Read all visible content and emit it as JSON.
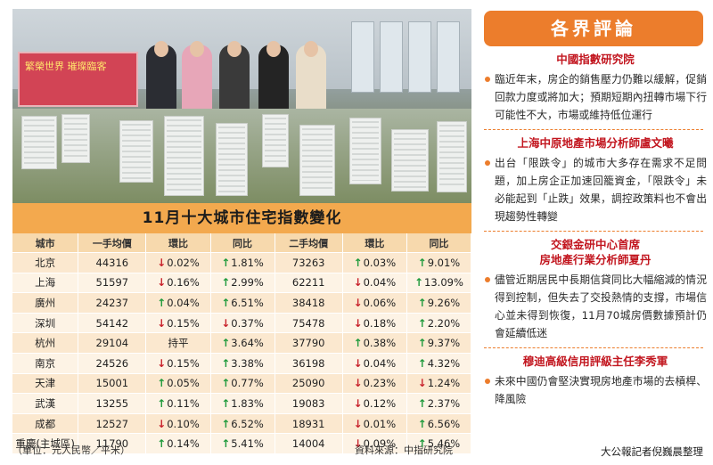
{
  "table": {
    "title": "11月十大城市住宅指數變化",
    "headers": [
      "城市",
      "一手均價",
      "環比",
      "同比",
      "二手均價",
      "環比",
      "同比"
    ],
    "rows": [
      {
        "city": "北京",
        "p1": "44316",
        "m1": {
          "dir": "down",
          "v": "0.02%"
        },
        "y1": {
          "dir": "up",
          "v": "1.81%"
        },
        "p2": "73263",
        "m2": {
          "dir": "up",
          "v": "0.03%"
        },
        "y2": {
          "dir": "up",
          "v": "9.01%"
        }
      },
      {
        "city": "上海",
        "p1": "51597",
        "m1": {
          "dir": "down",
          "v": "0.16%"
        },
        "y1": {
          "dir": "up",
          "v": "2.99%"
        },
        "p2": "62211",
        "m2": {
          "dir": "down",
          "v": "0.04%"
        },
        "y2": {
          "dir": "up",
          "v": "13.09%"
        }
      },
      {
        "city": "廣州",
        "p1": "24237",
        "m1": {
          "dir": "up",
          "v": "0.04%"
        },
        "y1": {
          "dir": "up",
          "v": "6.51%"
        },
        "p2": "38418",
        "m2": {
          "dir": "down",
          "v": "0.06%"
        },
        "y2": {
          "dir": "up",
          "v": "9.26%"
        }
      },
      {
        "city": "深圳",
        "p1": "54142",
        "m1": {
          "dir": "down",
          "v": "0.15%"
        },
        "y1": {
          "dir": "down",
          "v": "0.37%"
        },
        "p2": "75478",
        "m2": {
          "dir": "down",
          "v": "0.18%"
        },
        "y2": {
          "dir": "up",
          "v": "2.20%"
        }
      },
      {
        "city": "杭州",
        "p1": "29104",
        "m1": {
          "dir": "none",
          "v": "持平"
        },
        "y1": {
          "dir": "up",
          "v": "3.64%"
        },
        "p2": "37790",
        "m2": {
          "dir": "up",
          "v": "0.38%"
        },
        "y2": {
          "dir": "up",
          "v": "9.37%"
        }
      },
      {
        "city": "南京",
        "p1": "24526",
        "m1": {
          "dir": "down",
          "v": "0.15%"
        },
        "y1": {
          "dir": "up",
          "v": "3.38%"
        },
        "p2": "36198",
        "m2": {
          "dir": "down",
          "v": "0.04%"
        },
        "y2": {
          "dir": "up",
          "v": "4.32%"
        }
      },
      {
        "city": "天津",
        "p1": "15001",
        "m1": {
          "dir": "up",
          "v": "0.05%"
        },
        "y1": {
          "dir": "up",
          "v": "0.77%"
        },
        "p2": "25090",
        "m2": {
          "dir": "down",
          "v": "0.23%"
        },
        "y2": {
          "dir": "down",
          "v": "1.24%"
        }
      },
      {
        "city": "武漢",
        "p1": "13255",
        "m1": {
          "dir": "up",
          "v": "0.11%"
        },
        "y1": {
          "dir": "up",
          "v": "1.83%"
        },
        "p2": "19083",
        "m2": {
          "dir": "down",
          "v": "0.12%"
        },
        "y2": {
          "dir": "up",
          "v": "2.37%"
        }
      },
      {
        "city": "成都",
        "p1": "12527",
        "m1": {
          "dir": "down",
          "v": "0.10%"
        },
        "y1": {
          "dir": "up",
          "v": "6.52%"
        },
        "p2": "18931",
        "m2": {
          "dir": "down",
          "v": "0.01%"
        },
        "y2": {
          "dir": "up",
          "v": "6.56%"
        }
      },
      {
        "city": "重慶(主城區)",
        "p1": "11790",
        "m1": {
          "dir": "up",
          "v": "0.14%"
        },
        "y1": {
          "dir": "up",
          "v": "5.41%"
        },
        "p2": "14004",
        "m2": {
          "dir": "down",
          "v": "0.09%"
        },
        "y2": {
          "dir": "up",
          "v": "5.46%"
        }
      }
    ],
    "unit_note": "（單位：元人民幣／平米）",
    "source_note": "資料來源：中指研究院"
  },
  "photo": {
    "banner_text": "繁榮世界 璀璨臨客"
  },
  "comments": {
    "header": "各界評論",
    "items": [
      {
        "source": "中國指數研究院",
        "text": "臨近年末，房企的銷售壓力仍難以緩解，促銷回款力度或將加大；預期短期內扭轉市場下行可能性不大，市場或維持低位運行"
      },
      {
        "source": "上海中原地產市場分析師盧文曦",
        "text": "出台「限跌令」的城市大多存在需求不足問題，加上房企正加速回籠資金，「限跌令」未必能起到「止跌」效果，調控政策料也不會出現趨勢性轉變"
      },
      {
        "source": "交銀金研中心首席",
        "source2": "房地產行業分析師夏丹",
        "text": "儘管近期居民中長期信貸同比大幅縮減的情況得到控制，但失去了交投熱情的支撐，市場信心並未得到恢復，11月70城房價數據預計仍會延續低迷"
      },
      {
        "source": "穆迪高級信用評級主任李秀軍",
        "text": "未來中國仍會堅決實現房地產市場的去槓桿、降風險"
      }
    ],
    "credit": "大公報記者倪巍晨整理"
  },
  "colors": {
    "up": "#1e9a3c",
    "down": "#c8232c",
    "accent": "#ec7d2c",
    "title_bar": "#f3a94e",
    "source_red": "#c2161f"
  }
}
